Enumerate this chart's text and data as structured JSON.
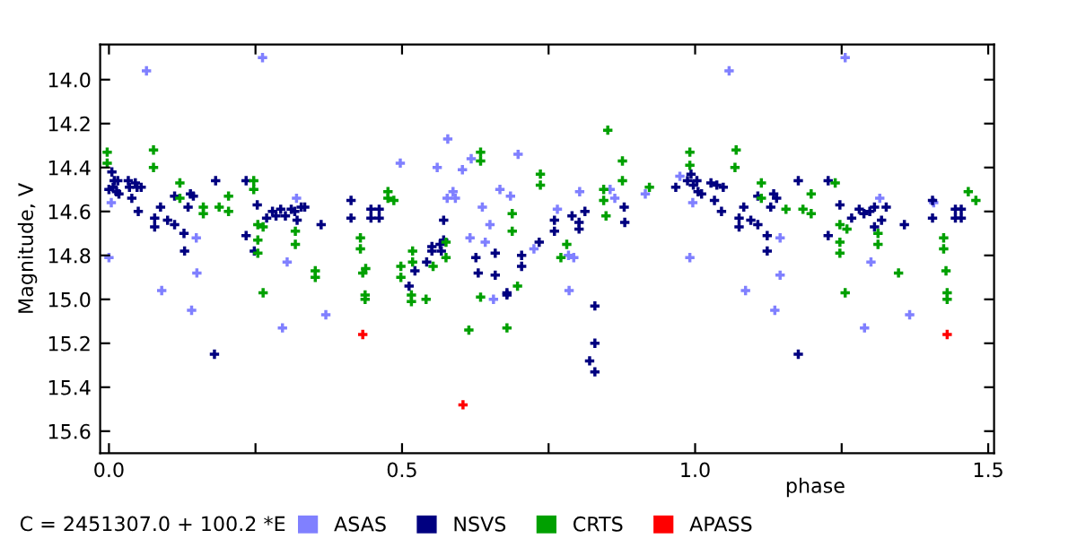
{
  "chart_data": {
    "type": "scatter",
    "ylabel": "Magnitude, V",
    "xlabel": "phase",
    "annotations": [
      "C = 2451307.0 + 100.2 *E"
    ],
    "xlim": [
      -0.015,
      1.51
    ],
    "xticks": [
      {
        "value": 0,
        "label": "0.0"
      },
      {
        "value": 0.25,
        "label": null
      },
      {
        "value": 0.5,
        "label": "0.5"
      },
      {
        "value": 0.75,
        "label": null
      },
      {
        "value": 1.0,
        "label": "1.0"
      },
      {
        "value": 1.25,
        "label": null
      },
      {
        "value": 1.5,
        "label": "1.5"
      }
    ],
    "ylim": [
      15.7,
      13.84
    ],
    "yticks": [
      {
        "value": 14.0,
        "label": "14.0"
      },
      {
        "value": 14.2,
        "label": "14.2"
      },
      {
        "value": 14.4,
        "label": "14.4"
      },
      {
        "value": 14.6,
        "label": "14.6"
      },
      {
        "value": 14.8,
        "label": "14.8"
      },
      {
        "value": 15.0,
        "label": "15.0"
      },
      {
        "value": 15.2,
        "label": "15.2"
      },
      {
        "value": 15.4,
        "label": "15.4"
      },
      {
        "value": 15.6,
        "label": "15.6"
      }
    ],
    "grid": false,
    "legend": "bottom",
    "marker": "cross",
    "series": [
      {
        "name": "ASAS",
        "color": "#8080ff",
        "x": [
          0.0,
          0.004,
          0.064,
          0.09,
          0.149,
          0.15,
          0.141,
          0.262,
          0.296,
          0.304,
          0.32,
          0.37,
          0.497,
          0.56,
          0.578,
          0.577,
          0.587,
          0.591,
          0.603,
          0.616,
          0.618,
          0.637,
          0.642,
          0.65,
          0.656,
          0.667,
          0.685,
          0.698,
          0.725,
          0.765,
          0.784,
          0.793,
          0.785,
          0.803,
          0.855,
          0.863,
          0.915,
          0.974,
          0.991,
          0.996,
          1.058,
          1.086,
          1.145,
          1.145,
          1.136,
          1.256,
          1.289,
          1.3,
          1.315,
          1.366,
          1.407
        ],
        "values": [
          14.81,
          14.56,
          13.96,
          14.96,
          14.72,
          14.88,
          15.05,
          13.9,
          15.13,
          14.83,
          14.54,
          15.07,
          14.38,
          14.4,
          14.27,
          14.54,
          14.51,
          14.54,
          14.41,
          14.72,
          14.36,
          14.58,
          14.74,
          14.66,
          15.0,
          14.5,
          14.53,
          14.34,
          14.77,
          14.59,
          14.8,
          14.81,
          14.96,
          14.51,
          14.5,
          14.54,
          14.52,
          14.44,
          14.81,
          14.56,
          13.96,
          14.96,
          14.72,
          14.89,
          15.05,
          13.9,
          15.13,
          14.83,
          14.54,
          15.07,
          14.56
        ]
      },
      {
        "name": "NSVS",
        "color": "#000080",
        "x": [
          0.0,
          0.005,
          0.007,
          0.009,
          0.015,
          0.013,
          0.017,
          0.033,
          0.035,
          0.039,
          0.045,
          0.048,
          0.055,
          0.05,
          0.078,
          0.078,
          0.088,
          0.1,
          0.112,
          0.112,
          0.128,
          0.129,
          0.135,
          0.139,
          0.144,
          0.182,
          0.18,
          0.234,
          0.234,
          0.253,
          0.248,
          0.269,
          0.279,
          0.285,
          0.293,
          0.301,
          0.311,
          0.317,
          0.321,
          0.328,
          0.334,
          0.362,
          0.413,
          0.413,
          0.447,
          0.447,
          0.461,
          0.461,
          0.512,
          0.522,
          0.542,
          0.551,
          0.551,
          0.565,
          0.567,
          0.571,
          0.571,
          0.626,
          0.63,
          0.659,
          0.659,
          0.679,
          0.679,
          0.704,
          0.704,
          0.734,
          0.76,
          0.76,
          0.79,
          0.802,
          0.802,
          0.812,
          0.829,
          0.829,
          0.82,
          0.829,
          0.879,
          0.88,
          0.967,
          0.987,
          0.993,
          0.997,
          1.003,
          1.005,
          1.011,
          1.027,
          1.033,
          1.037,
          1.048,
          1.045,
          1.075,
          1.075,
          1.083,
          1.095,
          1.107,
          1.107,
          1.123,
          1.123,
          1.129,
          1.134,
          1.139,
          1.176,
          1.176,
          1.227,
          1.227,
          1.247,
          1.267,
          1.28,
          1.288,
          1.298,
          1.306,
          1.306,
          1.318,
          1.326,
          1.357,
          1.405,
          1.405,
          1.444,
          1.454,
          1.444,
          1.454
        ],
        "values": [
          14.5,
          14.42,
          14.49,
          14.46,
          14.46,
          14.51,
          14.52,
          14.46,
          14.49,
          14.54,
          14.47,
          14.49,
          14.49,
          14.6,
          14.63,
          14.67,
          14.58,
          14.64,
          14.66,
          14.53,
          14.7,
          14.78,
          14.58,
          14.52,
          14.53,
          14.46,
          15.25,
          14.46,
          14.71,
          14.57,
          14.78,
          14.63,
          14.6,
          14.62,
          14.59,
          14.62,
          14.59,
          14.6,
          14.64,
          14.58,
          14.58,
          14.66,
          14.55,
          14.63,
          14.59,
          14.63,
          14.59,
          14.63,
          14.94,
          14.87,
          14.83,
          14.76,
          14.78,
          14.75,
          14.78,
          14.64,
          14.73,
          14.81,
          14.88,
          14.79,
          14.89,
          14.97,
          14.98,
          14.8,
          14.85,
          14.74,
          14.64,
          14.69,
          14.62,
          14.65,
          14.68,
          14.6,
          15.03,
          15.2,
          15.28,
          15.33,
          14.58,
          14.65,
          14.49,
          14.46,
          14.43,
          14.48,
          14.46,
          14.51,
          14.52,
          14.47,
          14.55,
          14.48,
          14.49,
          14.6,
          14.63,
          14.67,
          14.58,
          14.64,
          14.66,
          14.53,
          14.71,
          14.78,
          14.58,
          14.52,
          14.54,
          14.46,
          15.25,
          14.46,
          14.71,
          14.57,
          14.63,
          14.59,
          14.61,
          14.6,
          14.58,
          14.67,
          14.64,
          14.58,
          14.66,
          14.55,
          14.63,
          14.59,
          14.59,
          14.63,
          14.63
        ]
      },
      {
        "name": "CRTS",
        "color": "#00a000",
        "x": [
          -0.003,
          -0.003,
          0.076,
          0.076,
          0.121,
          0.121,
          0.161,
          0.161,
          0.188,
          0.204,
          0.204,
          0.247,
          0.247,
          0.254,
          0.254,
          0.254,
          0.263,
          0.263,
          0.318,
          0.318,
          0.352,
          0.352,
          0.429,
          0.429,
          0.433,
          0.438,
          0.437,
          0.437,
          0.476,
          0.476,
          0.486,
          0.498,
          0.498,
          0.518,
          0.518,
          0.516,
          0.516,
          0.553,
          0.541,
          0.575,
          0.575,
          0.614,
          0.634,
          0.634,
          0.634,
          0.679,
          0.688,
          0.688,
          0.697,
          0.736,
          0.736,
          0.771,
          0.781,
          0.844,
          0.844,
          0.848,
          0.851,
          0.876,
          0.876,
          0.922,
          0.991,
          0.991,
          1.07,
          1.068,
          1.113,
          1.113,
          1.155,
          1.184,
          1.198,
          1.198,
          1.239,
          1.247,
          1.247,
          1.247,
          1.256,
          1.259,
          1.312,
          1.312,
          1.347,
          1.424,
          1.424,
          1.428,
          1.43,
          1.43,
          1.466,
          1.479
        ],
        "values": [
          14.33,
          14.38,
          14.32,
          14.4,
          14.47,
          14.54,
          14.58,
          14.61,
          14.58,
          14.53,
          14.6,
          14.46,
          14.5,
          14.66,
          14.79,
          14.73,
          14.97,
          14.67,
          14.69,
          14.75,
          14.87,
          14.9,
          14.72,
          14.77,
          14.88,
          14.86,
          14.98,
          15.0,
          14.51,
          14.54,
          14.55,
          14.85,
          14.9,
          14.78,
          14.83,
          14.98,
          15.01,
          14.85,
          15.0,
          14.74,
          14.81,
          15.14,
          14.33,
          14.37,
          14.99,
          15.13,
          14.61,
          14.69,
          14.94,
          14.43,
          14.48,
          14.81,
          14.75,
          14.5,
          14.55,
          14.62,
          14.23,
          14.37,
          14.46,
          14.49,
          14.33,
          14.39,
          14.32,
          14.4,
          14.47,
          14.54,
          14.59,
          14.59,
          14.52,
          14.61,
          14.47,
          14.66,
          14.74,
          14.79,
          14.97,
          14.68,
          14.7,
          14.75,
          14.88,
          14.72,
          14.77,
          14.87,
          14.97,
          15.0,
          14.51,
          14.55
        ]
      },
      {
        "name": "APASS",
        "color": "#ff0000",
        "x": [
          0.433,
          0.604,
          1.43
        ],
        "values": [
          15.16,
          15.48,
          15.16
        ]
      }
    ]
  }
}
